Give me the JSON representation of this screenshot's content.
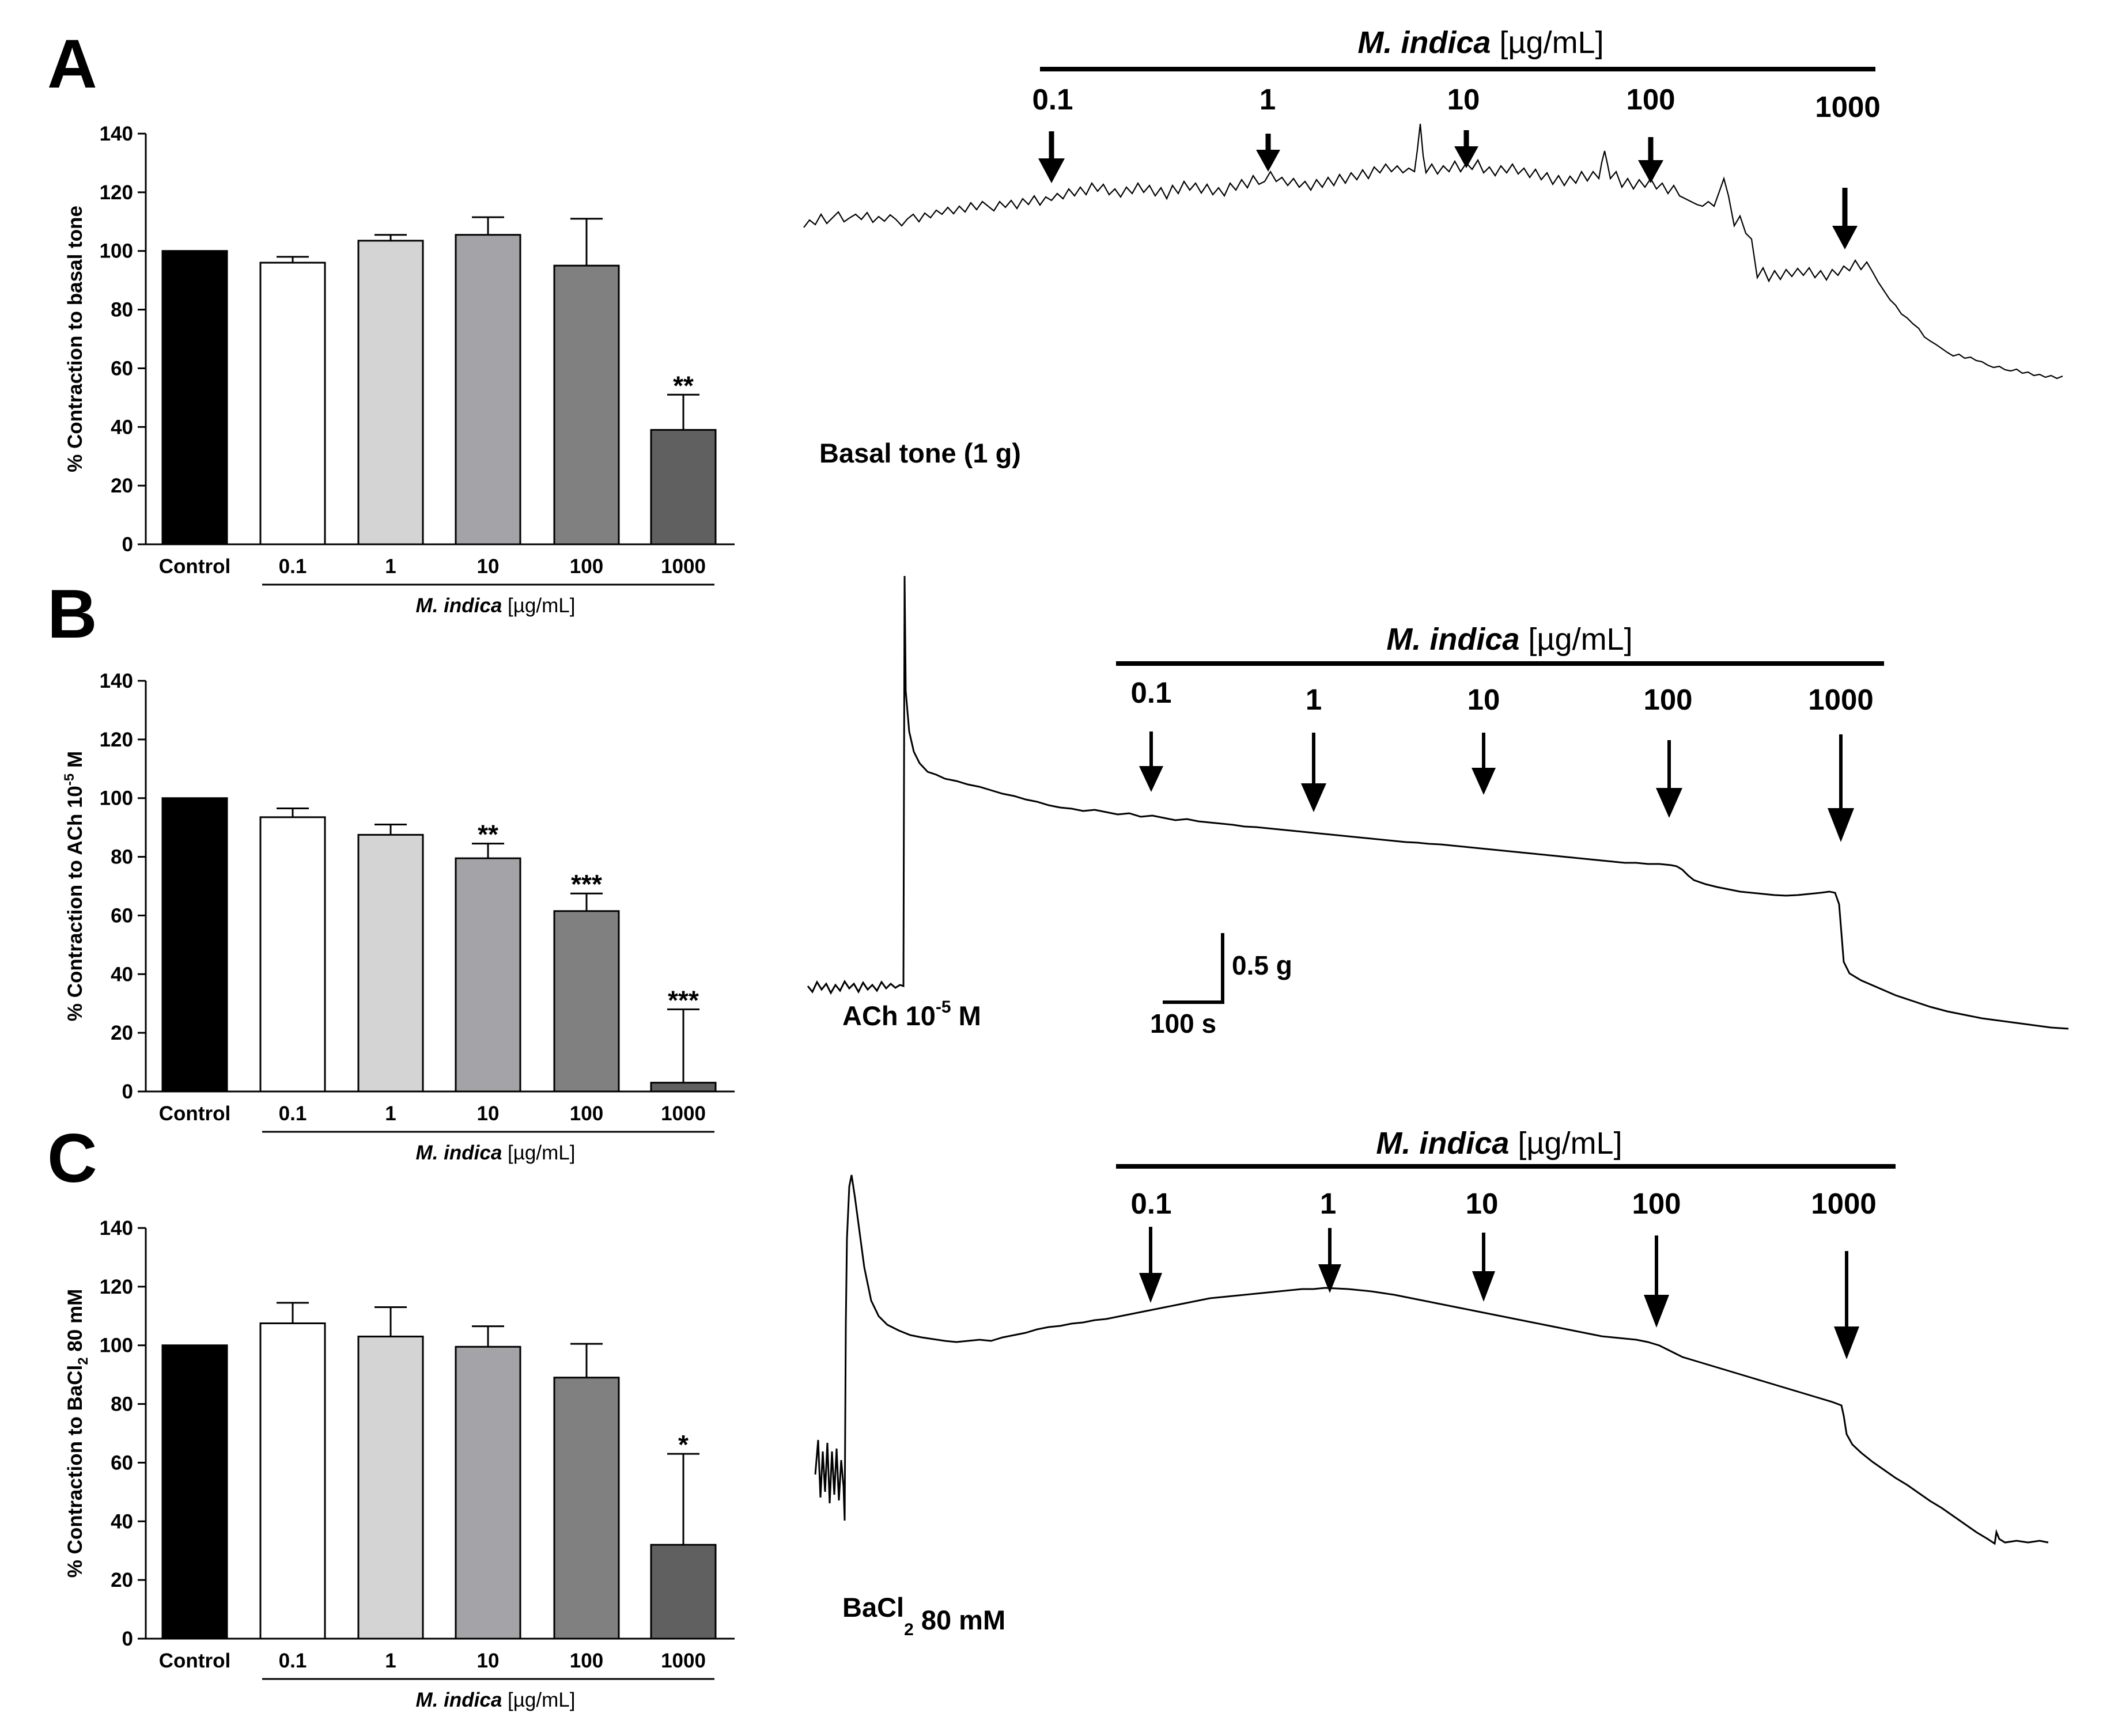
{
  "figure": {
    "panels": [
      "A",
      "B",
      "C"
    ]
  },
  "chart_data": [
    {
      "type": "bar",
      "panel": "A",
      "categories": [
        "Control",
        "0.1",
        "1",
        "10",
        "100",
        "1000"
      ],
      "values": [
        100,
        96,
        103.5,
        105.5,
        95,
        39
      ],
      "errors": [
        0,
        2,
        2,
        6,
        16,
        12
      ],
      "significance": [
        "",
        "",
        "",
        "",
        "",
        "**"
      ],
      "colors": [
        "#000000",
        "#ffffff",
        "#d4d4d4",
        "#a4a4a8",
        "#808080",
        "#606060"
      ],
      "ylabel": "% Contraction to basal tone",
      "ylabel_sup": "",
      "ylabel_tail": "",
      "ylabel_sub": "",
      "xgroup": {
        "prefix": "M. indica",
        "suffix": " [µg/mL]"
      },
      "ylim": [
        0,
        140
      ],
      "yticks": [
        0,
        20,
        40,
        60,
        80,
        100,
        120,
        140
      ]
    },
    {
      "type": "bar",
      "panel": "B",
      "categories": [
        "Control",
        "0.1",
        "1",
        "10",
        "100",
        "1000"
      ],
      "values": [
        100,
        93.5,
        87.5,
        79.5,
        61.5,
        3
      ],
      "errors": [
        0,
        3,
        3.5,
        5,
        6,
        25
      ],
      "significance": [
        "",
        "",
        "",
        "**",
        "***",
        "***"
      ],
      "colors": [
        "#000000",
        "#ffffff",
        "#d4d4d4",
        "#a4a4a8",
        "#808080",
        "#606060"
      ],
      "ylabel": "% Contraction to ACh 10",
      "ylabel_sup": "-5",
      "ylabel_tail": " M",
      "ylabel_sub": "",
      "xgroup": {
        "prefix": "M. indica",
        "suffix": " [µg/mL]"
      },
      "ylim": [
        0,
        140
      ],
      "yticks": [
        0,
        20,
        40,
        60,
        80,
        100,
        120,
        140
      ]
    },
    {
      "type": "bar",
      "panel": "C",
      "categories": [
        "Control",
        "0.1",
        "1",
        "10",
        "100",
        "1000"
      ],
      "values": [
        100,
        107.5,
        103,
        99.5,
        89,
        32
      ],
      "errors": [
        0,
        7,
        10,
        7,
        11.5,
        31
      ],
      "significance": [
        "",
        "",
        "",
        "",
        "",
        "*"
      ],
      "colors": [
        "#000000",
        "#ffffff",
        "#d4d4d4",
        "#a4a4a8",
        "#808080",
        "#606060"
      ],
      "ylabel": "% Contraction to BaCl",
      "ylabel_sup": "",
      "ylabel_tail": " 80 mM",
      "ylabel_sub": "2",
      "xgroup": {
        "prefix": "M. indica",
        "suffix": " [µg/mL]"
      },
      "ylim": [
        0,
        140
      ],
      "yticks": [
        0,
        20,
        40,
        60,
        80,
        100,
        120,
        140
      ]
    }
  ],
  "traces": [
    {
      "panel": "A",
      "header_prefix": "M. indica",
      "header_suffix": " [µg/mL]",
      "doses": [
        "0.1",
        "1",
        "10",
        "100",
        "1000"
      ],
      "label_main": "Basal tone (1 g)",
      "label_sup": "",
      "label_sub": "",
      "label_tail": ""
    },
    {
      "panel": "B",
      "header_prefix": "M. indica",
      "header_suffix": " [µg/mL]",
      "doses": [
        "0.1",
        "1",
        "10",
        "100",
        "1000"
      ],
      "label_main": "ACh 10",
      "label_sup": "-5",
      "label_sub": "",
      "label_tail": " M",
      "scale_bar": {
        "y_label": "0.5 g",
        "x_label": "100 s"
      }
    },
    {
      "panel": "C",
      "header_prefix": "M. indica",
      "header_suffix": " [µg/mL]",
      "doses": [
        "0.1",
        "1",
        "10",
        "100",
        "1000"
      ],
      "label_main": "BaCl",
      "label_sup": "",
      "label_sub": "2",
      "label_tail": " 80 mM"
    }
  ]
}
